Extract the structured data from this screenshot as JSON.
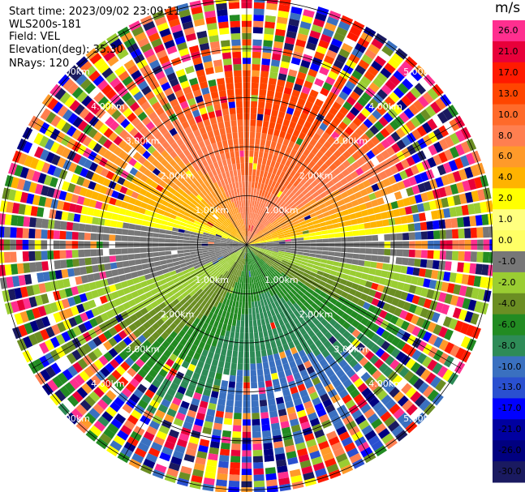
{
  "header": {
    "start_time": "Start time: 2023/09/02 23:09:11",
    "instrument": "WLS200s-181",
    "field": "Field: VEL",
    "elevation": "Elevation(deg): 35.30",
    "nrays": "NRays: 120"
  },
  "colorbar": {
    "unit": "m/s",
    "ticks": [
      "26.0",
      "21.0",
      "17.0",
      "13.0",
      "10.0",
      "8.0",
      "6.0",
      "4.0",
      "2.0",
      "1.0",
      "0.0",
      "-1.0",
      "-2.0",
      "-4.0",
      "-6.0",
      "-8.0",
      "-10.0",
      "-13.0",
      "-17.0",
      "-21.0",
      "-26.0",
      "-30.0"
    ],
    "colors": [
      "#ff2f8f",
      "#e8003a",
      "#ff1a00",
      "#ff4500",
      "#ff6a2a",
      "#ff7f50",
      "#ff9a2a",
      "#ffb300",
      "#ffff00",
      "#ffff80",
      "#ffff66",
      "#777777",
      "#9acd32",
      "#6b8e23",
      "#228b22",
      "#2e8b57",
      "#3a70c0",
      "#2a50d0",
      "#0000ff",
      "#0000a0",
      "#000080",
      "#1a1a60"
    ]
  },
  "chart_data": {
    "type": "ppi",
    "field": "VEL",
    "nrays": 120,
    "range_rings": [
      {
        "label": "1.00km",
        "km": 1.0
      },
      {
        "label": "2.00km",
        "km": 2.0
      },
      {
        "label": "3.00km",
        "km": 3.0
      },
      {
        "label": "4.00km",
        "km": 4.0
      },
      {
        "label": "5.00km",
        "km": 5.0
      }
    ],
    "vmin": -30.0,
    "vmax": 26.0
  }
}
